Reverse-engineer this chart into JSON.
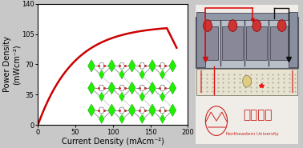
{
  "xlabel": "Current Density (mAcm⁻²)",
  "ylabel": "Power Density\n(mWcm⁻²)",
  "xlim": [
    0,
    200
  ],
  "ylim": [
    0,
    140
  ],
  "xticks": [
    0,
    50,
    100,
    150,
    200
  ],
  "yticks": [
    0,
    35,
    70,
    105,
    140
  ],
  "curve_color": "#cc0000",
  "curve_linewidth": 1.8,
  "label_fontsize": 7,
  "tick_fontsize": 6,
  "fig_bg": "#c8c8c8",
  "plot_bg": "#ffffff",
  "green_node": "#22ee00",
  "grey_linker": "#777777",
  "photo_bg": "#d0cfc8",
  "photo_device_color": "#a0a8b0",
  "photo_device_dark": "#606878",
  "breadboard_color": "#e8e4d8",
  "red_wire": "#dd1111",
  "black_wire": "#111111",
  "uni_text_color": "#cc2222",
  "uni_logo_color": "#cc2222"
}
